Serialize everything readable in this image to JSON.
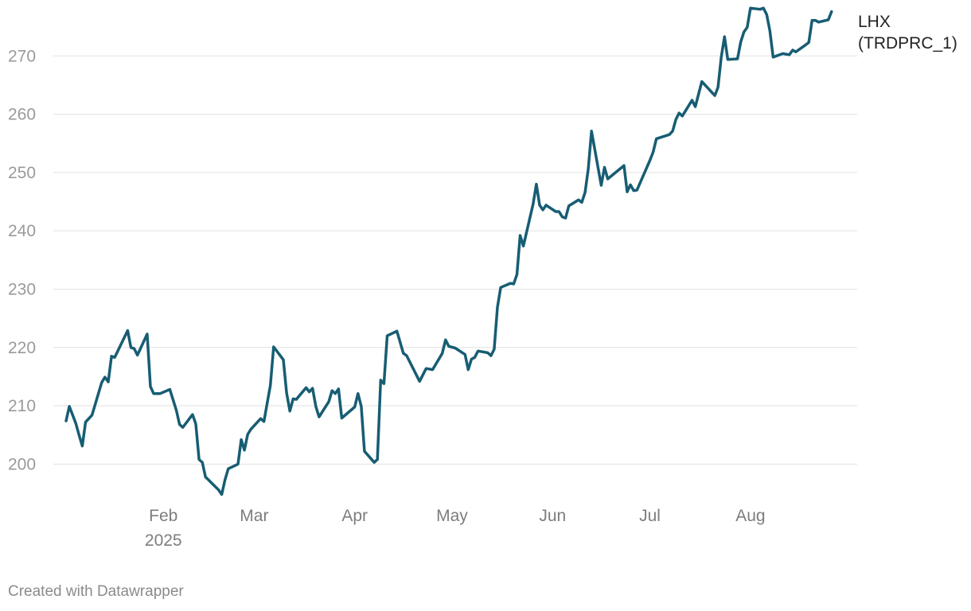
{
  "chart_data": {
    "type": "line",
    "title": "",
    "xlabel": "",
    "ylabel": "",
    "ylim": [
      195,
      278.5
    ],
    "yticks": [
      200,
      210,
      220,
      230,
      240,
      250,
      260,
      270
    ],
    "x_start": "2025-01-02",
    "x_end": "2025-08-29",
    "x_ticks": [
      {
        "label": "Feb",
        "sublabel": "2025",
        "date": "2025-02-01"
      },
      {
        "label": "Mar",
        "sublabel": "",
        "date": "2025-03-01"
      },
      {
        "label": "Apr",
        "sublabel": "",
        "date": "2025-04-01"
      },
      {
        "label": "May",
        "sublabel": "",
        "date": "2025-05-01"
      },
      {
        "label": "Jun",
        "sublabel": "",
        "date": "2025-06-01"
      },
      {
        "label": "Jul",
        "sublabel": "",
        "date": "2025-07-01"
      },
      {
        "label": "Aug",
        "sublabel": "",
        "date": "2025-08-01"
      }
    ],
    "series": [
      {
        "name": "LHX (TRDPRC_1)",
        "label_lines": [
          "LHX",
          "(TRDPRC_1)"
        ],
        "color": "#175d73",
        "points": [
          [
            0,
            207.4
          ],
          [
            1,
            209.9
          ],
          [
            3,
            207.0
          ],
          [
            4,
            205.0
          ],
          [
            5,
            203.1
          ],
          [
            6,
            207.2
          ],
          [
            8,
            208.4
          ],
          [
            11,
            214.0
          ],
          [
            12,
            214.9
          ],
          [
            13,
            214.1
          ],
          [
            14,
            218.5
          ],
          [
            15,
            218.3
          ],
          [
            19,
            222.9
          ],
          [
            20,
            220.0
          ],
          [
            21,
            219.8
          ],
          [
            22,
            218.7
          ],
          [
            25,
            222.3
          ],
          [
            26,
            213.3
          ],
          [
            27,
            212.1
          ],
          [
            29,
            212.1
          ],
          [
            32,
            212.8
          ],
          [
            34,
            209.2
          ],
          [
            35,
            206.8
          ],
          [
            36,
            206.3
          ],
          [
            39,
            208.5
          ],
          [
            40,
            206.9
          ],
          [
            41,
            200.8
          ],
          [
            42,
            200.3
          ],
          [
            43,
            197.8
          ],
          [
            47,
            195.6
          ],
          [
            48,
            194.8
          ],
          [
            49,
            197.3
          ],
          [
            50,
            199.2
          ],
          [
            53,
            200.0
          ],
          [
            54,
            204.2
          ],
          [
            55,
            202.4
          ],
          [
            56,
            205.1
          ],
          [
            57,
            206.0
          ],
          [
            60,
            207.8
          ],
          [
            61,
            207.3
          ],
          [
            63,
            213.5
          ],
          [
            64,
            220.1
          ],
          [
            67,
            217.9
          ],
          [
            68,
            212.2
          ],
          [
            69,
            209.1
          ],
          [
            70,
            211.2
          ],
          [
            71,
            211.1
          ],
          [
            74,
            213.1
          ],
          [
            75,
            212.4
          ],
          [
            76,
            213.0
          ],
          [
            77,
            209.9
          ],
          [
            78,
            208.1
          ],
          [
            81,
            210.7
          ],
          [
            82,
            212.6
          ],
          [
            83,
            212.1
          ],
          [
            84,
            212.9
          ],
          [
            85,
            207.9
          ],
          [
            89,
            209.8
          ],
          [
            90,
            212.1
          ],
          [
            91,
            209.9
          ],
          [
            92,
            202.2
          ],
          [
            95,
            200.3
          ],
          [
            96,
            200.8
          ],
          [
            97,
            214.4
          ],
          [
            98,
            213.8
          ],
          [
            99,
            222.0
          ],
          [
            102,
            222.8
          ],
          [
            104,
            219.0
          ],
          [
            105,
            218.6
          ],
          [
            109,
            214.2
          ],
          [
            111,
            216.4
          ],
          [
            113,
            216.2
          ],
          [
            116,
            219.0
          ],
          [
            117,
            221.3
          ],
          [
            118,
            220.2
          ],
          [
            120,
            219.9
          ],
          [
            123,
            218.8
          ],
          [
            124,
            216.2
          ],
          [
            125,
            218.0
          ],
          [
            126,
            218.3
          ],
          [
            127,
            219.4
          ],
          [
            130,
            219.1
          ],
          [
            131,
            218.6
          ],
          [
            132,
            219.7
          ],
          [
            133,
            226.9
          ],
          [
            134,
            230.3
          ],
          [
            137,
            231.0
          ],
          [
            138,
            230.9
          ],
          [
            139,
            232.5
          ],
          [
            140,
            239.2
          ],
          [
            141,
            237.4
          ],
          [
            144,
            244.6
          ],
          [
            145,
            248.0
          ],
          [
            146,
            244.4
          ],
          [
            147,
            243.6
          ],
          [
            148,
            244.4
          ],
          [
            151,
            243.3
          ],
          [
            152,
            243.3
          ],
          [
            153,
            242.4
          ],
          [
            154,
            242.2
          ],
          [
            155,
            244.3
          ],
          [
            158,
            245.3
          ],
          [
            159,
            244.9
          ],
          [
            160,
            246.6
          ],
          [
            161,
            250.6
          ],
          [
            162,
            257.1
          ],
          [
            165,
            247.8
          ],
          [
            166,
            250.9
          ],
          [
            167,
            248.9
          ],
          [
            172,
            251.2
          ],
          [
            173,
            246.7
          ],
          [
            174,
            247.9
          ],
          [
            175,
            246.9
          ],
          [
            176,
            247.0
          ],
          [
            180,
            252.1
          ],
          [
            181,
            253.5
          ],
          [
            182,
            255.8
          ],
          [
            186,
            256.5
          ],
          [
            187,
            257.1
          ],
          [
            188,
            259.1
          ],
          [
            189,
            260.2
          ],
          [
            190,
            259.7
          ],
          [
            193,
            262.4
          ],
          [
            194,
            261.3
          ],
          [
            196,
            265.6
          ],
          [
            200,
            263.2
          ],
          [
            201,
            264.6
          ],
          [
            202,
            269.8
          ],
          [
            203,
            273.3
          ],
          [
            204,
            269.4
          ],
          [
            207,
            269.5
          ],
          [
            208,
            272.4
          ],
          [
            209,
            274.1
          ],
          [
            210,
            274.9
          ],
          [
            211,
            278.2
          ],
          [
            214,
            278.0
          ],
          [
            215,
            278.2
          ],
          [
            216,
            277.1
          ],
          [
            217,
            274.3
          ],
          [
            218,
            269.8
          ],
          [
            221,
            270.4
          ],
          [
            222,
            270.3
          ],
          [
            223,
            270.2
          ],
          [
            224,
            271.0
          ],
          [
            225,
            270.7
          ],
          [
            228,
            271.9
          ],
          [
            229,
            272.3
          ],
          [
            230,
            276.1
          ],
          [
            231,
            276.1
          ],
          [
            232,
            275.8
          ],
          [
            235,
            276.2
          ],
          [
            236,
            277.6
          ]
        ]
      }
    ]
  },
  "footer": {
    "credit": "Created with Datawrapper"
  }
}
